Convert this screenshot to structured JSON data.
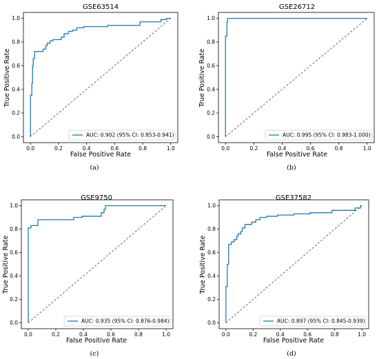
{
  "panels": [
    {
      "caption": "(a)",
      "chart_data": {
        "type": "line",
        "title": "GSE63514",
        "xlabel": "False Positive Rate",
        "ylabel": "True Positive Rate",
        "xlim": [
          -0.05,
          1.05
        ],
        "ylim": [
          -0.05,
          1.05
        ],
        "xticks": [
          "0.0",
          "0.2",
          "0.4",
          "0.6",
          "0.8",
          "1.0"
        ],
        "yticks": [
          "0.0",
          "0.2",
          "0.4",
          "0.6",
          "0.8",
          "1.0"
        ],
        "legend_position": "lower-right",
        "grid": false,
        "series": [
          {
            "name": "AUC: 0.902 (95% CI: 0.853-0.941)",
            "color": "#1f77b4",
            "x": [
              0.0,
              0.0,
              0.01,
              0.01,
              0.015,
              0.015,
              0.02,
              0.02,
              0.03,
              0.03,
              0.09,
              0.09,
              0.11,
              0.11,
              0.12,
              0.12,
              0.14,
              0.14,
              0.16,
              0.16,
              0.22,
              0.22,
              0.24,
              0.24,
              0.27,
              0.27,
              0.3,
              0.3,
              0.33,
              0.33,
              0.38,
              0.38,
              0.55,
              0.55,
              0.78,
              0.78,
              0.93,
              0.93,
              0.97,
              0.97,
              1.0
            ],
            "y": [
              0.0,
              0.35,
              0.35,
              0.45,
              0.45,
              0.6,
              0.6,
              0.66,
              0.66,
              0.72,
              0.72,
              0.74,
              0.74,
              0.77,
              0.77,
              0.79,
              0.79,
              0.81,
              0.81,
              0.82,
              0.82,
              0.84,
              0.84,
              0.87,
              0.87,
              0.89,
              0.89,
              0.9,
              0.9,
              0.92,
              0.92,
              0.93,
              0.93,
              0.94,
              0.94,
              0.97,
              0.97,
              0.99,
              0.99,
              1.0,
              1.0
            ]
          }
        ]
      }
    },
    {
      "caption": "(b)",
      "chart_data": {
        "type": "line",
        "title": "GSE26712",
        "xlabel": "False Positive Rate",
        "ylabel": "True Positive Rate",
        "xlim": [
          -0.05,
          1.05
        ],
        "ylim": [
          -0.05,
          1.05
        ],
        "xticks": [
          "0.0",
          "0.2",
          "0.4",
          "0.6",
          "0.8",
          "1.0"
        ],
        "yticks": [
          "0.0",
          "0.2",
          "0.4",
          "0.6",
          "0.8",
          "1.0"
        ],
        "legend_position": "lower-right",
        "grid": false,
        "series": [
          {
            "name": "AUC: 0.995 (95% CI: 0.983-1.000)",
            "color": "#1f77b4",
            "x": [
              0.0,
              0.0,
              0.01,
              0.01,
              0.015,
              0.015,
              1.0
            ],
            "y": [
              0.0,
              0.85,
              0.85,
              0.97,
              0.97,
              1.0,
              1.0
            ]
          }
        ]
      }
    },
    {
      "caption": "(c)",
      "chart_data": {
        "type": "line",
        "title": "GSE9750",
        "xlabel": "False Positive Rate",
        "ylabel": "True Positive Rate",
        "xlim": [
          -0.05,
          1.05
        ],
        "ylim": [
          -0.05,
          1.05
        ],
        "xticks": [
          "0.0",
          "0.2",
          "0.4",
          "0.6",
          "0.8",
          "1.0"
        ],
        "yticks": [
          "0.0",
          "0.2",
          "0.4",
          "0.6",
          "0.8",
          "1.0"
        ],
        "legend_position": "lower-right",
        "grid": false,
        "series": [
          {
            "name": "AUC: 0.935 (95% CI: 0.876-0.984)",
            "color": "#1f77b4",
            "x": [
              0.0,
              0.0,
              0.02,
              0.02,
              0.07,
              0.07,
              0.33,
              0.33,
              0.39,
              0.39,
              0.53,
              0.53,
              0.55,
              0.55,
              0.56,
              0.56,
              1.0
            ],
            "y": [
              0.0,
              0.81,
              0.81,
              0.83,
              0.83,
              0.88,
              0.88,
              0.9,
              0.9,
              0.91,
              0.91,
              0.94,
              0.94,
              0.97,
              0.97,
              1.0,
              1.0
            ]
          }
        ]
      }
    },
    {
      "caption": "(d)",
      "chart_data": {
        "type": "line",
        "title": "GSE37582",
        "xlabel": "False Positive Rate",
        "ylabel": "True Positive Rate",
        "xlim": [
          -0.05,
          1.05
        ],
        "ylim": [
          -0.05,
          1.05
        ],
        "xticks": [
          "0.0",
          "0.2",
          "0.4",
          "0.6",
          "0.8",
          "1.0"
        ],
        "yticks": [
          "0.0",
          "0.2",
          "0.4",
          "0.6",
          "0.8",
          "1.0"
        ],
        "legend_position": "lower-right",
        "grid": false,
        "series": [
          {
            "name": "AUC: 0.897 (95% CI: 0.845-0.939)",
            "color": "#1f77b4",
            "x": [
              0.0,
              0.0,
              0.01,
              0.01,
              0.02,
              0.02,
              0.04,
              0.04,
              0.06,
              0.06,
              0.08,
              0.08,
              0.09,
              0.09,
              0.11,
              0.11,
              0.12,
              0.12,
              0.14,
              0.14,
              0.19,
              0.19,
              0.22,
              0.22,
              0.25,
              0.25,
              0.3,
              0.3,
              0.38,
              0.38,
              0.5,
              0.5,
              0.62,
              0.62,
              0.78,
              0.78,
              0.95,
              0.95,
              0.99,
              0.99,
              1.0
            ],
            "y": [
              0.0,
              0.31,
              0.31,
              0.5,
              0.5,
              0.67,
              0.67,
              0.69,
              0.69,
              0.71,
              0.71,
              0.74,
              0.74,
              0.76,
              0.76,
              0.78,
              0.78,
              0.81,
              0.81,
              0.84,
              0.84,
              0.86,
              0.86,
              0.88,
              0.88,
              0.9,
              0.9,
              0.91,
              0.91,
              0.92,
              0.92,
              0.93,
              0.93,
              0.94,
              0.94,
              0.96,
              0.96,
              0.98,
              0.98,
              1.0,
              1.0
            ]
          }
        ]
      }
    }
  ]
}
